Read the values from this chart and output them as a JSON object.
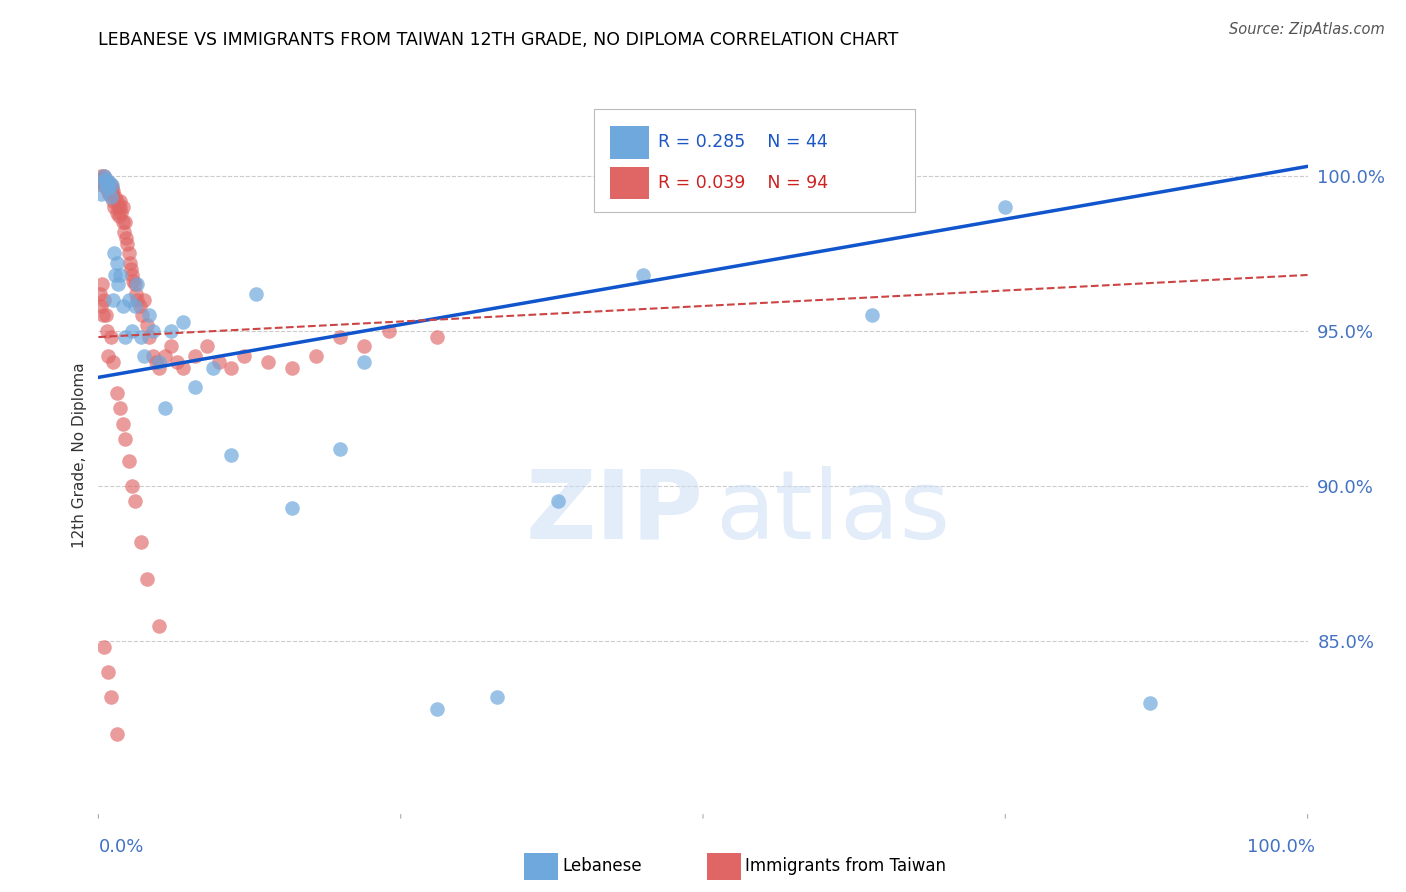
{
  "title": "LEBANESE VS IMMIGRANTS FROM TAIWAN 12TH GRADE, NO DIPLOMA CORRELATION CHART",
  "source": "Source: ZipAtlas.com",
  "ylabel": "12th Grade, No Diploma",
  "legend_blue_r": "R = 0.285",
  "legend_blue_n": "N = 44",
  "legend_pink_r": "R = 0.039",
  "legend_pink_n": "N = 94",
  "xmin": 0.0,
  "xmax": 1.0,
  "ymin": 0.795,
  "ymax": 1.025,
  "blue_color": "#6fa8dc",
  "pink_color": "#e06666",
  "blue_line_color": "#1155cc",
  "pink_line_color": "#cc4444",
  "blue_scatter_x": [
    0.002,
    0.004,
    0.005,
    0.006,
    0.006,
    0.007,
    0.008,
    0.009,
    0.01,
    0.011,
    0.012,
    0.013,
    0.014,
    0.015,
    0.016,
    0.018,
    0.02,
    0.022,
    0.025,
    0.028,
    0.03,
    0.032,
    0.035,
    0.038,
    0.042,
    0.045,
    0.05,
    0.055,
    0.06,
    0.07,
    0.08,
    0.095,
    0.11,
    0.13,
    0.16,
    0.2,
    0.22,
    0.28,
    0.33,
    0.38,
    0.45,
    0.64,
    0.75,
    0.87
  ],
  "blue_scatter_y": [
    0.994,
    0.998,
    1.0,
    0.998,
    0.999,
    0.997,
    0.996,
    0.998,
    0.993,
    0.997,
    0.96,
    0.975,
    0.968,
    0.972,
    0.965,
    0.968,
    0.958,
    0.948,
    0.96,
    0.95,
    0.958,
    0.965,
    0.948,
    0.942,
    0.955,
    0.95,
    0.94,
    0.925,
    0.95,
    0.953,
    0.932,
    0.938,
    0.91,
    0.962,
    0.893,
    0.912,
    0.94,
    0.828,
    0.832,
    0.895,
    0.968,
    0.955,
    0.99,
    0.83
  ],
  "pink_scatter_x": [
    0.001,
    0.002,
    0.002,
    0.003,
    0.003,
    0.004,
    0.004,
    0.005,
    0.005,
    0.006,
    0.006,
    0.007,
    0.007,
    0.008,
    0.008,
    0.009,
    0.009,
    0.01,
    0.01,
    0.011,
    0.011,
    0.012,
    0.012,
    0.013,
    0.014,
    0.015,
    0.015,
    0.016,
    0.017,
    0.018,
    0.018,
    0.019,
    0.02,
    0.02,
    0.021,
    0.022,
    0.023,
    0.024,
    0.025,
    0.026,
    0.027,
    0.028,
    0.029,
    0.03,
    0.031,
    0.032,
    0.034,
    0.036,
    0.038,
    0.04,
    0.042,
    0.045,
    0.048,
    0.05,
    0.055,
    0.06,
    0.065,
    0.07,
    0.08,
    0.09,
    0.1,
    0.11,
    0.12,
    0.14,
    0.16,
    0.18,
    0.2,
    0.22,
    0.24,
    0.28,
    0.001,
    0.002,
    0.003,
    0.004,
    0.005,
    0.006,
    0.007,
    0.008,
    0.01,
    0.012,
    0.015,
    0.018,
    0.02,
    0.022,
    0.025,
    0.028,
    0.03,
    0.035,
    0.04,
    0.05,
    0.005,
    0.008,
    0.01,
    0.015
  ],
  "pink_scatter_y": [
    0.998,
    1.0,
    0.999,
    0.998,
    0.997,
    0.998,
    0.999,
    1.0,
    0.999,
    0.997,
    0.998,
    0.996,
    0.997,
    0.995,
    0.998,
    0.994,
    0.996,
    0.995,
    0.997,
    0.994,
    0.996,
    0.992,
    0.995,
    0.99,
    0.993,
    0.988,
    0.992,
    0.99,
    0.987,
    0.992,
    0.99,
    0.988,
    0.985,
    0.99,
    0.982,
    0.985,
    0.98,
    0.978,
    0.975,
    0.972,
    0.97,
    0.968,
    0.966,
    0.965,
    0.962,
    0.96,
    0.958,
    0.955,
    0.96,
    0.952,
    0.948,
    0.942,
    0.94,
    0.938,
    0.942,
    0.945,
    0.94,
    0.938,
    0.942,
    0.945,
    0.94,
    0.938,
    0.942,
    0.94,
    0.938,
    0.942,
    0.948,
    0.945,
    0.95,
    0.948,
    0.962,
    0.958,
    0.965,
    0.955,
    0.96,
    0.955,
    0.95,
    0.942,
    0.948,
    0.94,
    0.93,
    0.925,
    0.92,
    0.915,
    0.908,
    0.9,
    0.895,
    0.882,
    0.87,
    0.855,
    0.848,
    0.84,
    0.832,
    0.82
  ],
  "blue_trendline_x": [
    0.0,
    1.0
  ],
  "blue_trendline_y": [
    0.935,
    1.003
  ],
  "pink_trendline_x": [
    0.0,
    1.0
  ],
  "pink_trendline_y": [
    0.948,
    0.968
  ]
}
